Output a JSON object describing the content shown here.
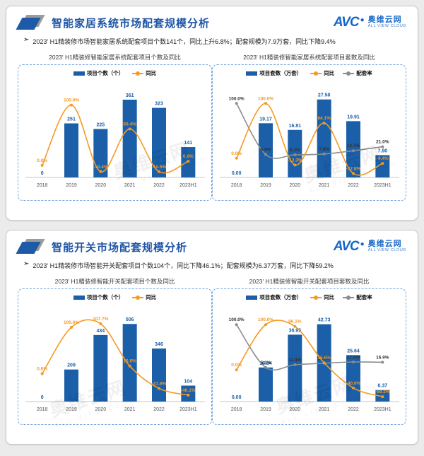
{
  "logo": {
    "avc": "AVC",
    "dot": "●",
    "name": "奥维云网",
    "tagline": "ALL VIEW CLOUD"
  },
  "watermark": {
    "text": "奥维云网",
    "tagline": "ALL VIEW CLOUD"
  },
  "icons": {
    "bullet_arrow": "➣"
  },
  "colors": {
    "bar_blue": "#1A5FA8",
    "line_orange": "#F59A22",
    "line_gray": "#8C8C8C",
    "title_blue": "#1F55A5",
    "logo_blue": "#1565C8",
    "axis_gray": "#BFBFBF"
  },
  "panels": [
    {
      "title": "智能家居系统市场配套规模分析",
      "bullet": "2023' H1精装修市场智能家居系统配套项目个数141个，同比上升6.8%；配套规模为7.9万套，同比下降9.4%"
    },
    {
      "title": "智能开关市场配套规模分析",
      "bullet": "2023' H1精装修市场智能开关配套项目个数104个，同比下降46.1%；配套规模为6.37万套，同比下降59.2%"
    }
  ],
  "chart_data": [
    {
      "type": "bar",
      "title": "2023' H1精装修智能家居系统配套项目个数及同比",
      "categories": [
        "2018",
        "2019",
        "2020",
        "2021",
        "2022",
        "2023H1"
      ],
      "bars": {
        "name": "项目个数（个）",
        "color": "#1A5FA8",
        "values": [
          0,
          251,
          225,
          361,
          323,
          141
        ],
        "labels": [
          "0",
          "251",
          "225",
          "361",
          "323",
          "141"
        ]
      },
      "ylim": [
        0,
        420
      ],
      "lines": [
        {
          "name": "同比",
          "color": "#F59A22",
          "label_color": "#F59A22",
          "values": [
            0,
            100,
            -10.4,
            60.4,
            -10.5,
            6.8
          ],
          "labels": [
            "0.0%",
            "100.0%",
            "-10.4%",
            "60.4%",
            "-10.5%",
            "6.8%"
          ]
        }
      ],
      "ylim2": [
        -20,
        130
      ],
      "grid": false,
      "legend_position": "top"
    },
    {
      "type": "bar",
      "title": "2023' H1精装修智能家居系统配套项目套数及同比",
      "categories": [
        "2018",
        "2019",
        "2020",
        "2021",
        "2022",
        "2023H1"
      ],
      "bars": {
        "name": "项目套数（万套）",
        "color": "#1A5FA8",
        "values": [
          0,
          19.17,
          16.81,
          27.58,
          19.91,
          7.9
        ],
        "labels": [
          "0.00",
          "19.17",
          "16.81",
          "27.58",
          "19.91",
          "7.90"
        ]
      },
      "ylim": [
        0,
        32
      ],
      "lines": [
        {
          "name": "同比",
          "color": "#F59A22",
          "label_color": "#F59A22",
          "values": [
            0,
            100,
            -12.3,
            64.1,
            -27.8,
            -9.4
          ],
          "labels": [
            "0.0%",
            "100.0%",
            "-12.3%",
            "64.1%",
            "-27.8%",
            "-9.4%"
          ]
        },
        {
          "name": "配套率",
          "color": "#8C8C8C",
          "label_color": "#333333",
          "values": [
            100,
            6.9,
            6.2,
            7.8,
            13.7,
            21.0
          ],
          "labels": [
            "100.0%",
            "6.9%",
            "6.2%",
            "7.8%",
            "13.7%",
            "21.0%"
          ]
        }
      ],
      "ylim2": [
        -35,
        130
      ],
      "grid": false,
      "legend_position": "top"
    },
    {
      "type": "bar",
      "title": "2023' H1精装修智能开关配套项目个数及同比",
      "categories": [
        "2018",
        "2019",
        "2020",
        "2021",
        "2022",
        "2023H1"
      ],
      "bars": {
        "name": "项目个数（个）",
        "color": "#1A5FA8",
        "values": [
          0,
          209,
          434,
          506,
          346,
          104
        ],
        "labels": [
          "0",
          "209",
          "434",
          "506",
          "346",
          "104"
        ]
      },
      "ylim": [
        0,
        590
      ],
      "lines": [
        {
          "name": "同比",
          "color": "#F59A22",
          "label_color": "#F59A22",
          "values": [
            0,
            100,
            107.7,
            16.6,
            -31.6,
            -46.1
          ],
          "labels": [
            "0.0%",
            "100.0%",
            "107.7%",
            "16.6%",
            "-31.6%",
            "-46.1%"
          ]
        }
      ],
      "ylim2": [
        -60,
        135
      ],
      "grid": false,
      "legend_position": "top"
    },
    {
      "type": "bar",
      "title": "2023' H1精装修智能开关配套项目套数及同比",
      "categories": [
        "2018",
        "2019",
        "2020",
        "2021",
        "2022",
        "2023H1"
      ],
      "bars": {
        "name": "项目套数（万套）",
        "color": "#1A5FA8",
        "values": [
          0,
          18.84,
          36.95,
          42.73,
          25.64,
          6.37
        ],
        "labels": [
          "0.00",
          "18.84",
          "36.95",
          "42.73",
          "25.64",
          "6.37"
        ]
      },
      "ylim": [
        0,
        50
      ],
      "lines": [
        {
          "name": "同比",
          "color": "#F59A22",
          "label_color": "#F59A22",
          "values": [
            0,
            100,
            96.1,
            15.6,
            -40.0,
            -59.2
          ],
          "labels": [
            "0.0%",
            "100.0%",
            "96.1%",
            "15.6%",
            "-40.0%",
            "-59.2%"
          ]
        },
        {
          "name": "配套率",
          "color": "#8C8C8C",
          "label_color": "#333333",
          "values": [
            100,
            5.3,
            11.4,
            14.9,
            17.5,
            16.9
          ],
          "labels": [
            "100.0%",
            "5.3%",
            "11.4%",
            "14.9%",
            "17.5%",
            "16.9%"
          ]
        }
      ],
      "ylim2": [
        -70,
        130
      ],
      "grid": false,
      "legend_position": "top"
    }
  ]
}
